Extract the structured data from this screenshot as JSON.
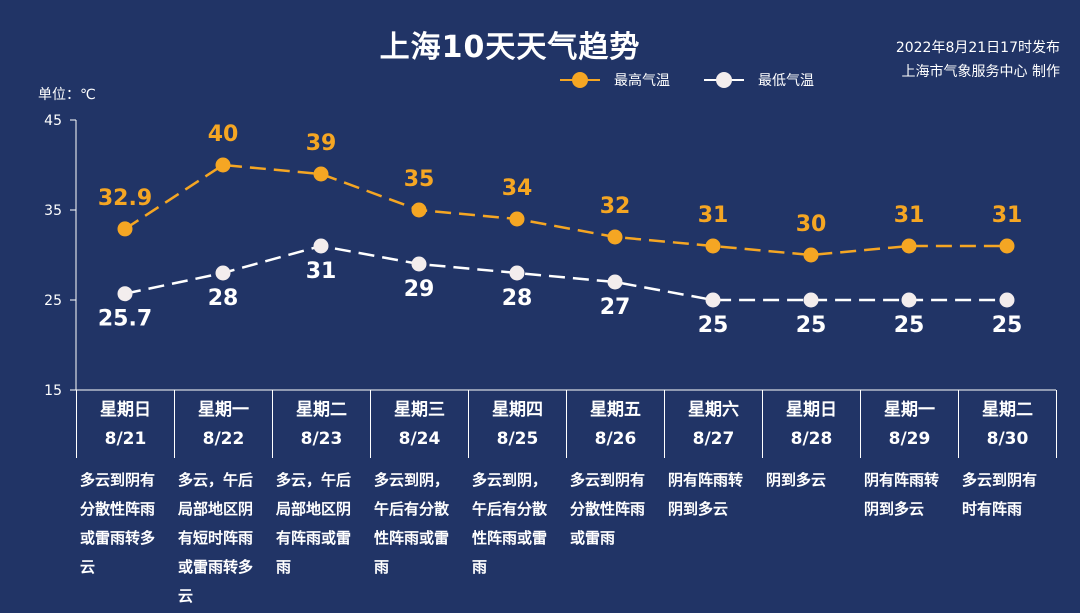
{
  "header": {
    "title": "上海10天天气趋势",
    "source_line1": "2022年8月21日17时发布",
    "source_line2": "上海市气象服务中心 制作",
    "unit": "单位：℃"
  },
  "legend": {
    "high": "最高气温",
    "low": "最低气温"
  },
  "colors": {
    "background": "#213466",
    "high": "#f5a623",
    "low": "#ffffff",
    "axis": "#ffffff"
  },
  "chart_data": {
    "type": "line",
    "title": "上海10天天气趋势",
    "ylabel": "单位：℃",
    "ylim": [
      15,
      45
    ],
    "yticks": [
      "15",
      "25",
      "35",
      "45"
    ],
    "grid": false,
    "legend_position": "top-right",
    "categories": [
      "8/21",
      "8/22",
      "8/23",
      "8/24",
      "8/25",
      "8/26",
      "8/27",
      "8/28",
      "8/29",
      "8/30"
    ],
    "series": [
      {
        "name": "最高气温",
        "values": [
          32.9,
          40,
          39,
          35,
          34,
          32,
          31,
          30,
          31,
          31
        ],
        "labels": [
          "32.9",
          "40",
          "39",
          "35",
          "34",
          "32",
          "31",
          "30",
          "31",
          "31"
        ]
      },
      {
        "name": "最低气温",
        "values": [
          25.7,
          28,
          31,
          29,
          28,
          27,
          25,
          25,
          25,
          25
        ],
        "labels": [
          "25.7",
          "28",
          "31",
          "29",
          "28",
          "27",
          "25",
          "25",
          "25",
          "25"
        ]
      }
    ]
  },
  "days": [
    {
      "weekday": "星期日",
      "date": "8/21",
      "desc": "多云到阴有分散性阵雨或雷雨转多云"
    },
    {
      "weekday": "星期一",
      "date": "8/22",
      "desc": "多云，午后局部地区阴有短时阵雨或雷雨转多云"
    },
    {
      "weekday": "星期二",
      "date": "8/23",
      "desc": "多云，午后局部地区阴有阵雨或雷雨"
    },
    {
      "weekday": "星期三",
      "date": "8/24",
      "desc": "多云到阴，午后有分散性阵雨或雷雨"
    },
    {
      "weekday": "星期四",
      "date": "8/25",
      "desc": "多云到阴，午后有分散性阵雨或雷雨"
    },
    {
      "weekday": "星期五",
      "date": "8/26",
      "desc": "多云到阴有分散性阵雨或雷雨"
    },
    {
      "weekday": "星期六",
      "date": "8/27",
      "desc": "阴有阵雨转阴到多云"
    },
    {
      "weekday": "星期日",
      "date": "8/28",
      "desc": "阴到多云"
    },
    {
      "weekday": "星期一",
      "date": "8/29",
      "desc": "阴有阵雨转阴到多云"
    },
    {
      "weekday": "星期二",
      "date": "8/30",
      "desc": "多云到阴有时有阵雨"
    }
  ]
}
